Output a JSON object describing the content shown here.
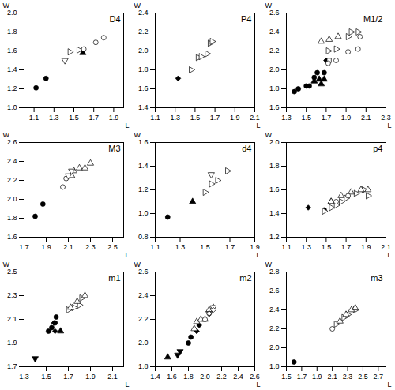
{
  "chart_data": [
    {
      "type": "scatter",
      "title": "D4",
      "xlabel": "L",
      "ylabel": "W",
      "xlim": [
        1.0,
        2.0
      ],
      "ylim": [
        1.0,
        2.0
      ],
      "xticks": [
        1.1,
        1.3,
        1.5,
        1.7,
        1.9
      ],
      "yticks": [
        {
          "value": 1.0,
          "label": "1.0"
        },
        1.2,
        1.4,
        1.6,
        1.8,
        {
          "value": 2.0,
          "label": "2.0"
        }
      ],
      "series": [
        {
          "marker": "circle",
          "color": "black",
          "x": [
            1.12,
            1.22
          ],
          "values": [
            1.21,
            1.31
          ]
        },
        {
          "marker": "triangle-down-open",
          "color": "black",
          "x": [
            1.41
          ],
          "values": [
            1.5
          ]
        },
        {
          "marker": "triangle-right-open",
          "color": "black",
          "x": [
            1.46,
            1.55
          ],
          "values": [
            1.59,
            1.61
          ]
        },
        {
          "marker": "triangle-up",
          "color": "black",
          "x": [
            1.59
          ],
          "values": [
            1.58
          ]
        },
        {
          "marker": "circle-open",
          "color": "black",
          "x": [
            1.6,
            1.72,
            1.8
          ],
          "values": [
            1.62,
            1.69,
            1.74
          ]
        }
      ]
    },
    {
      "type": "scatter",
      "title": "P4",
      "xlabel": "L",
      "ylabel": "W",
      "xlim": [
        1.1,
        2.1
      ],
      "ylim": [
        1.4,
        2.4
      ],
      "xticks": [
        1.1,
        1.3,
        1.5,
        1.7,
        1.9,
        2.1
      ],
      "yticks": [
        1.4,
        1.6,
        1.8,
        {
          "value": 2.0,
          "label": "2.0"
        },
        2.2,
        2.4
      ],
      "series": [
        {
          "marker": "diamond",
          "color": "black",
          "x": [
            1.33
          ],
          "values": [
            1.71
          ]
        },
        {
          "marker": "triangle-right-open",
          "color": "black",
          "x": [
            1.46,
            1.53,
            1.56,
            1.62,
            1.65,
            1.67
          ],
          "values": [
            1.8,
            1.93,
            1.94,
            1.97,
            2.08,
            2.1
          ]
        }
      ]
    },
    {
      "type": "scatter",
      "title": "M1/2",
      "xlabel": "L",
      "ylabel": "W",
      "xlim": [
        1.3,
        2.3
      ],
      "ylim": [
        1.6,
        2.6
      ],
      "xticks": [
        1.3,
        1.5,
        1.7,
        1.9,
        2.1,
        2.3
      ],
      "yticks": [
        1.6,
        1.8,
        {
          "value": 2.0,
          "label": "2.0"
        },
        2.2,
        2.4,
        2.6
      ],
      "series": [
        {
          "marker": "circle",
          "color": "black",
          "x": [
            1.38,
            1.42,
            1.5,
            1.53,
            1.58,
            1.61,
            1.68
          ],
          "values": [
            1.77,
            1.8,
            1.83,
            1.83,
            1.92,
            1.97,
            1.97
          ]
        },
        {
          "marker": "triangle-up",
          "color": "black",
          "x": [
            1.58,
            1.63,
            1.68,
            1.65
          ],
          "values": [
            1.88,
            1.9,
            1.9,
            1.85
          ]
        },
        {
          "marker": "diamond",
          "color": "black",
          "x": [
            1.7
          ],
          "values": [
            2.1
          ]
        },
        {
          "marker": "square-open",
          "color": "black",
          "x": [
            1.73
          ],
          "values": [
            2.1
          ]
        },
        {
          "marker": "circle-open",
          "color": "black",
          "x": [
            1.72,
            1.8,
            1.92,
            2.02,
            2.04
          ],
          "values": [
            2.07,
            2.1,
            2.19,
            2.22,
            2.35
          ]
        },
        {
          "marker": "triangle-right-open",
          "color": "black",
          "x": [
            1.72,
            1.8,
            1.92,
            1.95,
            2.02
          ],
          "values": [
            2.2,
            2.22,
            2.35,
            2.4,
            2.4
          ]
        },
        {
          "marker": "triangle-up-open",
          "color": "black",
          "x": [
            1.65,
            1.73,
            1.82
          ],
          "values": [
            2.3,
            2.32,
            2.35
          ]
        }
      ]
    },
    {
      "type": "scatter",
      "title": "M3",
      "xlabel": "L",
      "ylabel": "W",
      "xlim": [
        1.7,
        2.6
      ],
      "ylim": [
        1.6,
        2.6
      ],
      "xticks": [
        1.7,
        1.9,
        2.1,
        2.3,
        2.5
      ],
      "yticks": [
        1.6,
        1.8,
        {
          "value": 2.0,
          "label": "2.0"
        },
        2.2,
        2.4,
        2.6
      ],
      "series": [
        {
          "marker": "circle",
          "color": "black",
          "x": [
            1.8,
            1.87
          ],
          "values": [
            1.82,
            1.95
          ]
        },
        {
          "marker": "circle-open",
          "color": "black",
          "x": [
            2.05,
            2.08
          ],
          "values": [
            2.13,
            2.22
          ]
        },
        {
          "marker": "triangle-up-open",
          "color": "black",
          "x": [
            2.13,
            2.15,
            2.2,
            2.25,
            2.3
          ],
          "values": [
            2.25,
            2.3,
            2.33,
            2.33,
            2.38
          ]
        },
        {
          "marker": "triangle-down-open",
          "color": "black",
          "x": [
            2.1,
            2.13
          ],
          "values": [
            2.25,
            2.3
          ]
        }
      ]
    },
    {
      "type": "scatter",
      "title": "d4",
      "xlabel": "L",
      "ylabel": "W",
      "xlim": [
        1.1,
        1.9
      ],
      "ylim": [
        0.8,
        1.6
      ],
      "xticks": [
        1.1,
        1.3,
        1.5,
        1.7,
        1.9
      ],
      "yticks": [
        0.8,
        {
          "value": 1.0,
          "label": "1.0"
        },
        1.2,
        1.4,
        1.6
      ],
      "series": [
        {
          "marker": "circle",
          "color": "black",
          "x": [
            1.2
          ],
          "values": [
            0.97
          ]
        },
        {
          "marker": "triangle-up",
          "color": "black",
          "x": [
            1.4
          ],
          "values": [
            1.1
          ]
        },
        {
          "marker": "triangle-right-open",
          "color": "black",
          "x": [
            1.5,
            1.55,
            1.6,
            1.68
          ],
          "values": [
            1.18,
            1.25,
            1.28,
            1.36
          ]
        },
        {
          "marker": "triangle-down-open",
          "color": "black",
          "x": [
            1.55
          ],
          "values": [
            1.33
          ]
        }
      ]
    },
    {
      "type": "scatter",
      "title": "p4",
      "xlabel": "L",
      "ylabel": "W",
      "xlim": [
        1.1,
        2.1
      ],
      "ylim": [
        1.2,
        2.0
      ],
      "xticks": [
        1.1,
        1.3,
        1.5,
        1.7,
        1.9,
        2.1
      ],
      "yticks": [
        1.2,
        1.4,
        1.6,
        1.8,
        {
          "value": 2.0,
          "label": "2.0"
        }
      ],
      "series": [
        {
          "marker": "diamond",
          "color": "black",
          "x": [
            1.32
          ],
          "values": [
            1.45
          ]
        },
        {
          "marker": "circle",
          "color": "black",
          "x": [
            1.48
          ],
          "values": [
            1.43
          ]
        },
        {
          "marker": "triangle-up",
          "color": "black",
          "x": [
            1.55
          ],
          "values": [
            1.5
          ]
        },
        {
          "marker": "triangle-right-open",
          "color": "black",
          "x": [
            1.48,
            1.55,
            1.6,
            1.65,
            1.7,
            1.8,
            1.88,
            1.92
          ],
          "values": [
            1.42,
            1.45,
            1.47,
            1.5,
            1.53,
            1.57,
            1.6,
            1.55
          ]
        },
        {
          "marker": "triangle-up-open",
          "color": "black",
          "x": [
            1.55,
            1.65,
            1.75,
            1.85,
            1.92
          ],
          "values": [
            1.5,
            1.55,
            1.58,
            1.6,
            1.6
          ]
        },
        {
          "marker": "circle-open",
          "color": "black",
          "x": [
            1.6,
            1.72
          ],
          "values": [
            1.5,
            1.55
          ]
        }
      ]
    },
    {
      "type": "scatter",
      "title": "m1",
      "xlabel": "L",
      "ylabel": "W",
      "xlim": [
        1.3,
        2.2
      ],
      "ylim": [
        1.7,
        2.5
      ],
      "xticks": [
        1.3,
        1.5,
        1.7,
        1.9,
        2.1
      ],
      "yticks": [
        1.7,
        1.9,
        2.1,
        2.3,
        2.5
      ],
      "series": [
        {
          "marker": "triangle-down",
          "color": "black",
          "x": [
            1.4
          ],
          "values": [
            1.77
          ]
        },
        {
          "marker": "circle",
          "color": "black",
          "x": [
            1.52,
            1.55,
            1.58,
            1.59
          ],
          "values": [
            2.0,
            2.03,
            2.07,
            2.12
          ]
        },
        {
          "marker": "diamond",
          "color": "black",
          "x": [
            1.57,
            1.58
          ],
          "values": [
            2.07,
            2.0
          ]
        },
        {
          "marker": "triangle-up",
          "color": "black",
          "x": [
            1.63
          ],
          "values": [
            2.0
          ]
        },
        {
          "marker": "triangle-right-open",
          "color": "black",
          "x": [
            1.7,
            1.75,
            1.8,
            1.82
          ],
          "values": [
            2.18,
            2.2,
            2.22,
            2.28
          ]
        },
        {
          "marker": "triangle-up-open",
          "color": "black",
          "x": [
            1.72,
            1.78,
            1.85
          ],
          "values": [
            2.2,
            2.25,
            2.3
          ]
        }
      ]
    },
    {
      "type": "scatter",
      "title": "m2",
      "xlabel": "L",
      "ylabel": "W",
      "xlim": [
        1.4,
        2.6
      ],
      "ylim": [
        1.8,
        2.6
      ],
      "xticks": [
        1.4,
        1.6,
        1.8,
        {
          "value": 2.0,
          "label": "2.0"
        },
        2.2,
        2.4,
        2.6
      ],
      "yticks": [
        1.8,
        {
          "value": 2.0,
          "label": "2.0"
        },
        2.2,
        2.4,
        2.6
      ],
      "series": [
        {
          "marker": "triangle-up",
          "color": "black",
          "x": [
            1.55
          ],
          "values": [
            1.88
          ]
        },
        {
          "marker": "triangle-down",
          "color": "black",
          "x": [
            1.67,
            1.7
          ],
          "values": [
            1.9,
            1.93
          ]
        },
        {
          "marker": "circle",
          "color": "black",
          "x": [
            1.8,
            1.83
          ],
          "values": [
            2.0,
            2.05
          ]
        },
        {
          "marker": "diamond",
          "color": "black",
          "x": [
            1.9,
            1.93
          ],
          "values": [
            2.1,
            2.15
          ]
        },
        {
          "marker": "triangle-up-open",
          "color": "black",
          "x": [
            1.87,
            1.9,
            1.95,
            2.0,
            2.05,
            2.1
          ],
          "values": [
            2.12,
            2.18,
            2.2,
            2.2,
            2.28,
            2.3
          ]
        },
        {
          "marker": "triangle-down-open",
          "color": "black",
          "x": [
            2.05,
            2.1
          ],
          "values": [
            2.25,
            2.3
          ]
        },
        {
          "marker": "circle-open",
          "color": "black",
          "x": [
            2.0,
            2.05
          ],
          "values": [
            2.2,
            2.25
          ]
        },
        {
          "marker": "diamond-open",
          "color": "black",
          "x": [
            2.05,
            2.1
          ],
          "values": [
            2.25,
            2.28
          ]
        }
      ]
    },
    {
      "type": "scatter",
      "title": "m3",
      "xlabel": "L",
      "ylabel": "W",
      "xlim": [
        1.5,
        2.8
      ],
      "ylim": [
        1.8,
        2.8
      ],
      "xticks": [
        1.5,
        1.7,
        1.9,
        2.1,
        2.3,
        2.5,
        2.7
      ],
      "yticks": [
        1.8,
        {
          "value": 2.0,
          "label": "2.0"
        },
        2.2,
        2.4,
        2.6,
        2.8
      ],
      "series": [
        {
          "marker": "circle",
          "color": "black",
          "x": [
            1.6
          ],
          "values": [
            1.85
          ]
        },
        {
          "marker": "circle-open",
          "color": "black",
          "x": [
            2.1
          ],
          "values": [
            2.2
          ]
        },
        {
          "marker": "triangle-right-open",
          "color": "black",
          "x": [
            2.15,
            2.25,
            2.3,
            2.4
          ],
          "values": [
            2.25,
            2.32,
            2.35,
            2.4
          ]
        },
        {
          "marker": "triangle-up-open",
          "color": "black",
          "x": [
            2.2,
            2.28,
            2.35,
            2.4
          ],
          "values": [
            2.28,
            2.35,
            2.4,
            2.42
          ]
        },
        {
          "marker": "triangle-down-open",
          "color": "black",
          "x": [],
          "values": []
        }
      ]
    }
  ]
}
